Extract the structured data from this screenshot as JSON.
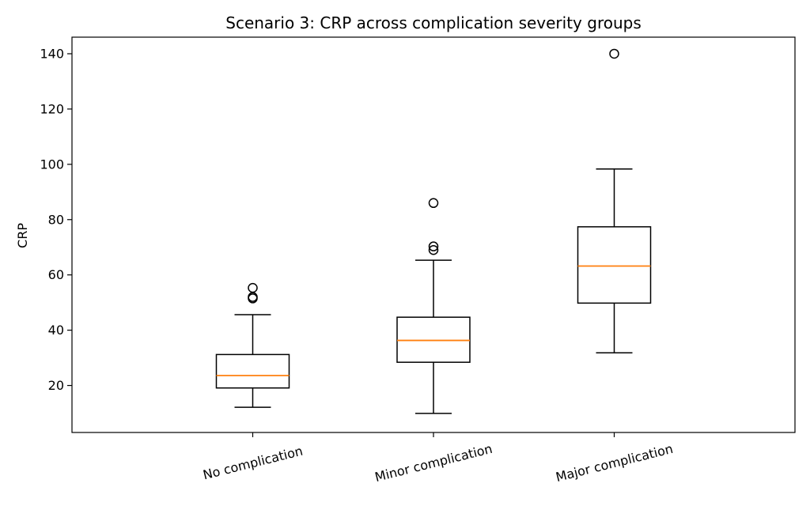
{
  "chart_data": {
    "type": "box",
    "title": "Scenario 3: CRP across complication severity groups",
    "xlabel": "",
    "ylabel": "CRP",
    "ylim": [
      3,
      146
    ],
    "yticks": [
      20,
      40,
      60,
      80,
      100,
      120,
      140
    ],
    "grid": false,
    "categories": [
      "No complication",
      "Minor complication",
      "Major complication"
    ],
    "boxes": [
      {
        "category": "No complication",
        "whisker_low": 12.1,
        "q1": 19.1,
        "median": 23.6,
        "q3": 31.2,
        "whisker_high": 45.6,
        "outliers": [
          51.5,
          52.0,
          55.3
        ]
      },
      {
        "category": "Minor complication",
        "whisker_low": 9.9,
        "q1": 28.4,
        "median": 36.3,
        "q3": 44.7,
        "whisker_high": 65.3,
        "outliers": [
          69.0,
          70.3,
          86.0
        ]
      },
      {
        "category": "Major complication",
        "whisker_low": 31.8,
        "q1": 49.8,
        "median": 63.2,
        "q3": 77.4,
        "whisker_high": 98.3,
        "outliers": [
          140.0
        ]
      }
    ],
    "colors": {
      "box": "#000000",
      "median": "#ff7f0e"
    }
  }
}
